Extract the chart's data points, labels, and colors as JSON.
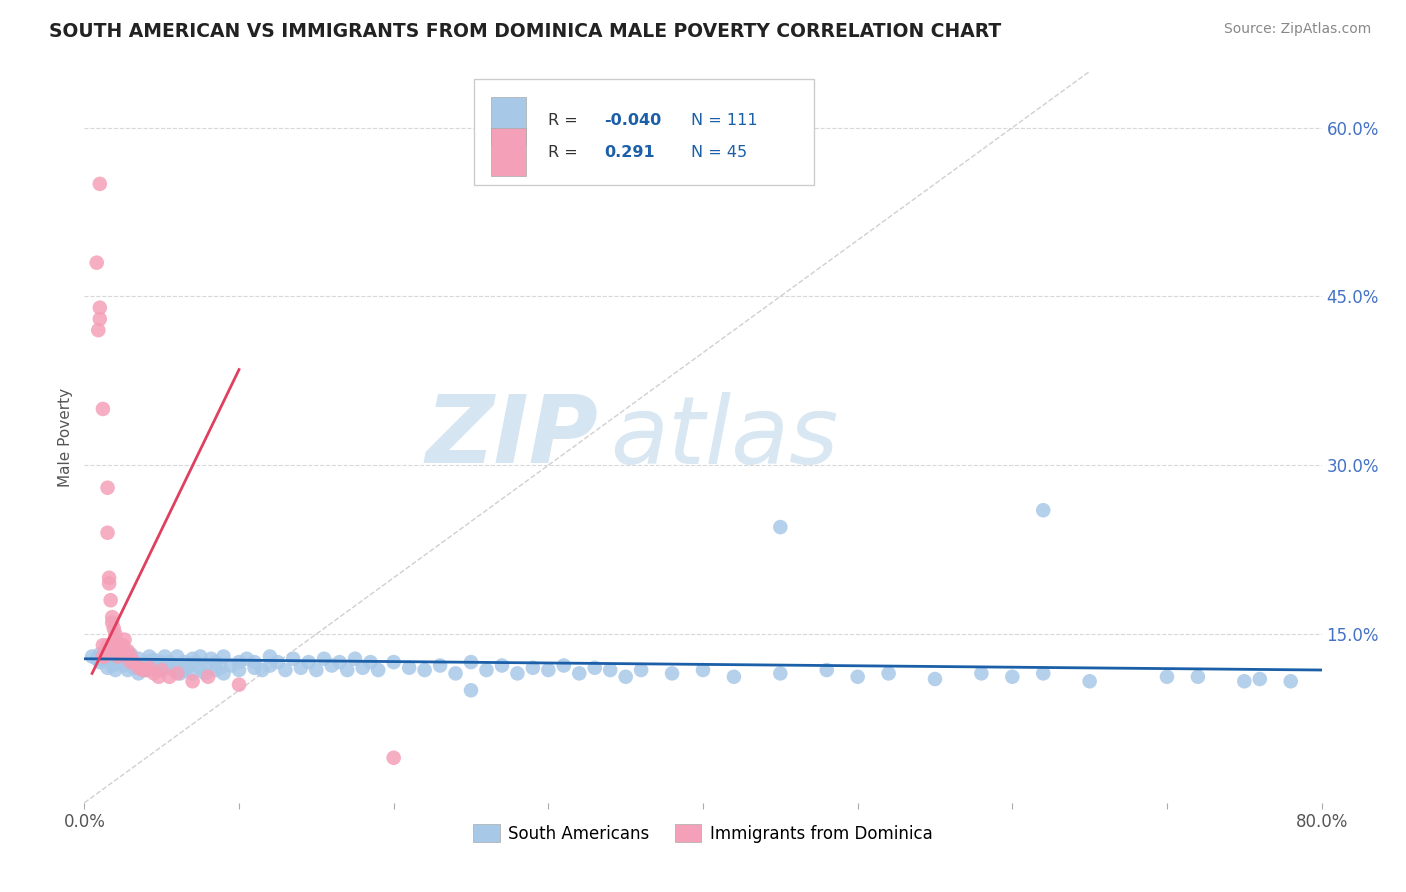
{
  "title": "SOUTH AMERICAN VS IMMIGRANTS FROM DOMINICA MALE POVERTY CORRELATION CHART",
  "source_text": "Source: ZipAtlas.com",
  "ylabel": "Male Poverty",
  "xlim": [
    0.0,
    0.8
  ],
  "ylim": [
    0.0,
    0.65
  ],
  "r_sa": -0.04,
  "n_sa": 111,
  "r_dom": 0.291,
  "n_dom": 45,
  "color_sa": "#a8c8e8",
  "color_dom": "#f4a0b8",
  "color_sa_line": "#1a5fa8",
  "color_dom_line": "#e04060",
  "color_diag": "#d0d0d0",
  "color_grid": "#d8d8d8",
  "sa_x": [
    0.005,
    0.008,
    0.01,
    0.01,
    0.012,
    0.015,
    0.015,
    0.018,
    0.02,
    0.02,
    0.022,
    0.025,
    0.025,
    0.028,
    0.03,
    0.03,
    0.032,
    0.035,
    0.035,
    0.038,
    0.04,
    0.04,
    0.042,
    0.045,
    0.045,
    0.048,
    0.05,
    0.05,
    0.052,
    0.055,
    0.055,
    0.058,
    0.06,
    0.06,
    0.062,
    0.065,
    0.065,
    0.068,
    0.07,
    0.07,
    0.072,
    0.075,
    0.075,
    0.078,
    0.08,
    0.082,
    0.085,
    0.085,
    0.088,
    0.09,
    0.09,
    0.095,
    0.1,
    0.1,
    0.105,
    0.11,
    0.11,
    0.115,
    0.12,
    0.12,
    0.125,
    0.13,
    0.135,
    0.14,
    0.145,
    0.15,
    0.155,
    0.16,
    0.165,
    0.17,
    0.175,
    0.18,
    0.185,
    0.19,
    0.2,
    0.21,
    0.22,
    0.23,
    0.24,
    0.25,
    0.26,
    0.27,
    0.28,
    0.29,
    0.3,
    0.31,
    0.32,
    0.33,
    0.34,
    0.35,
    0.36,
    0.38,
    0.4,
    0.42,
    0.45,
    0.48,
    0.5,
    0.52,
    0.55,
    0.58,
    0.6,
    0.62,
    0.65,
    0.7,
    0.72,
    0.75,
    0.76,
    0.78,
    0.45,
    0.62,
    0.25
  ],
  "sa_y": [
    0.13,
    0.128,
    0.125,
    0.132,
    0.127,
    0.12,
    0.135,
    0.122,
    0.118,
    0.128,
    0.125,
    0.122,
    0.13,
    0.118,
    0.125,
    0.132,
    0.12,
    0.128,
    0.115,
    0.122,
    0.125,
    0.118,
    0.13,
    0.12,
    0.127,
    0.122,
    0.118,
    0.125,
    0.13,
    0.12,
    0.125,
    0.118,
    0.122,
    0.13,
    0.115,
    0.125,
    0.118,
    0.122,
    0.128,
    0.115,
    0.125,
    0.12,
    0.13,
    0.115,
    0.122,
    0.128,
    0.118,
    0.125,
    0.12,
    0.13,
    0.115,
    0.122,
    0.125,
    0.118,
    0.128,
    0.12,
    0.125,
    0.118,
    0.13,
    0.122,
    0.125,
    0.118,
    0.128,
    0.12,
    0.125,
    0.118,
    0.128,
    0.122,
    0.125,
    0.118,
    0.128,
    0.12,
    0.125,
    0.118,
    0.125,
    0.12,
    0.118,
    0.122,
    0.115,
    0.125,
    0.118,
    0.122,
    0.115,
    0.12,
    0.118,
    0.122,
    0.115,
    0.12,
    0.118,
    0.112,
    0.118,
    0.115,
    0.118,
    0.112,
    0.115,
    0.118,
    0.112,
    0.115,
    0.11,
    0.115,
    0.112,
    0.115,
    0.108,
    0.112,
    0.112,
    0.108,
    0.11,
    0.108,
    0.245,
    0.26,
    0.1
  ],
  "dom_x": [
    0.008,
    0.009,
    0.01,
    0.01,
    0.01,
    0.012,
    0.012,
    0.012,
    0.013,
    0.014,
    0.015,
    0.015,
    0.015,
    0.016,
    0.016,
    0.017,
    0.018,
    0.018,
    0.019,
    0.02,
    0.02,
    0.021,
    0.022,
    0.022,
    0.025,
    0.025,
    0.026,
    0.028,
    0.028,
    0.03,
    0.03,
    0.032,
    0.035,
    0.038,
    0.04,
    0.042,
    0.045,
    0.048,
    0.05,
    0.055,
    0.06,
    0.07,
    0.08,
    0.1,
    0.2
  ],
  "dom_y": [
    0.48,
    0.42,
    0.55,
    0.43,
    0.44,
    0.35,
    0.13,
    0.14,
    0.13,
    0.135,
    0.28,
    0.24,
    0.14,
    0.195,
    0.2,
    0.18,
    0.165,
    0.16,
    0.155,
    0.15,
    0.145,
    0.14,
    0.135,
    0.13,
    0.135,
    0.14,
    0.145,
    0.13,
    0.135,
    0.125,
    0.13,
    0.125,
    0.12,
    0.118,
    0.118,
    0.12,
    0.115,
    0.112,
    0.118,
    0.112,
    0.115,
    0.108,
    0.112,
    0.105,
    0.04
  ],
  "sa_line_x": [
    0.0,
    0.8
  ],
  "sa_line_y": [
    0.128,
    0.118
  ],
  "dom_line_x": [
    0.005,
    0.1
  ],
  "dom_line_y": [
    0.115,
    0.385
  ],
  "legend_r_sa_color": "#1a5fa8",
  "legend_n_color": "#1a5fa8",
  "legend_r_dom_color": "#1a5fa8"
}
